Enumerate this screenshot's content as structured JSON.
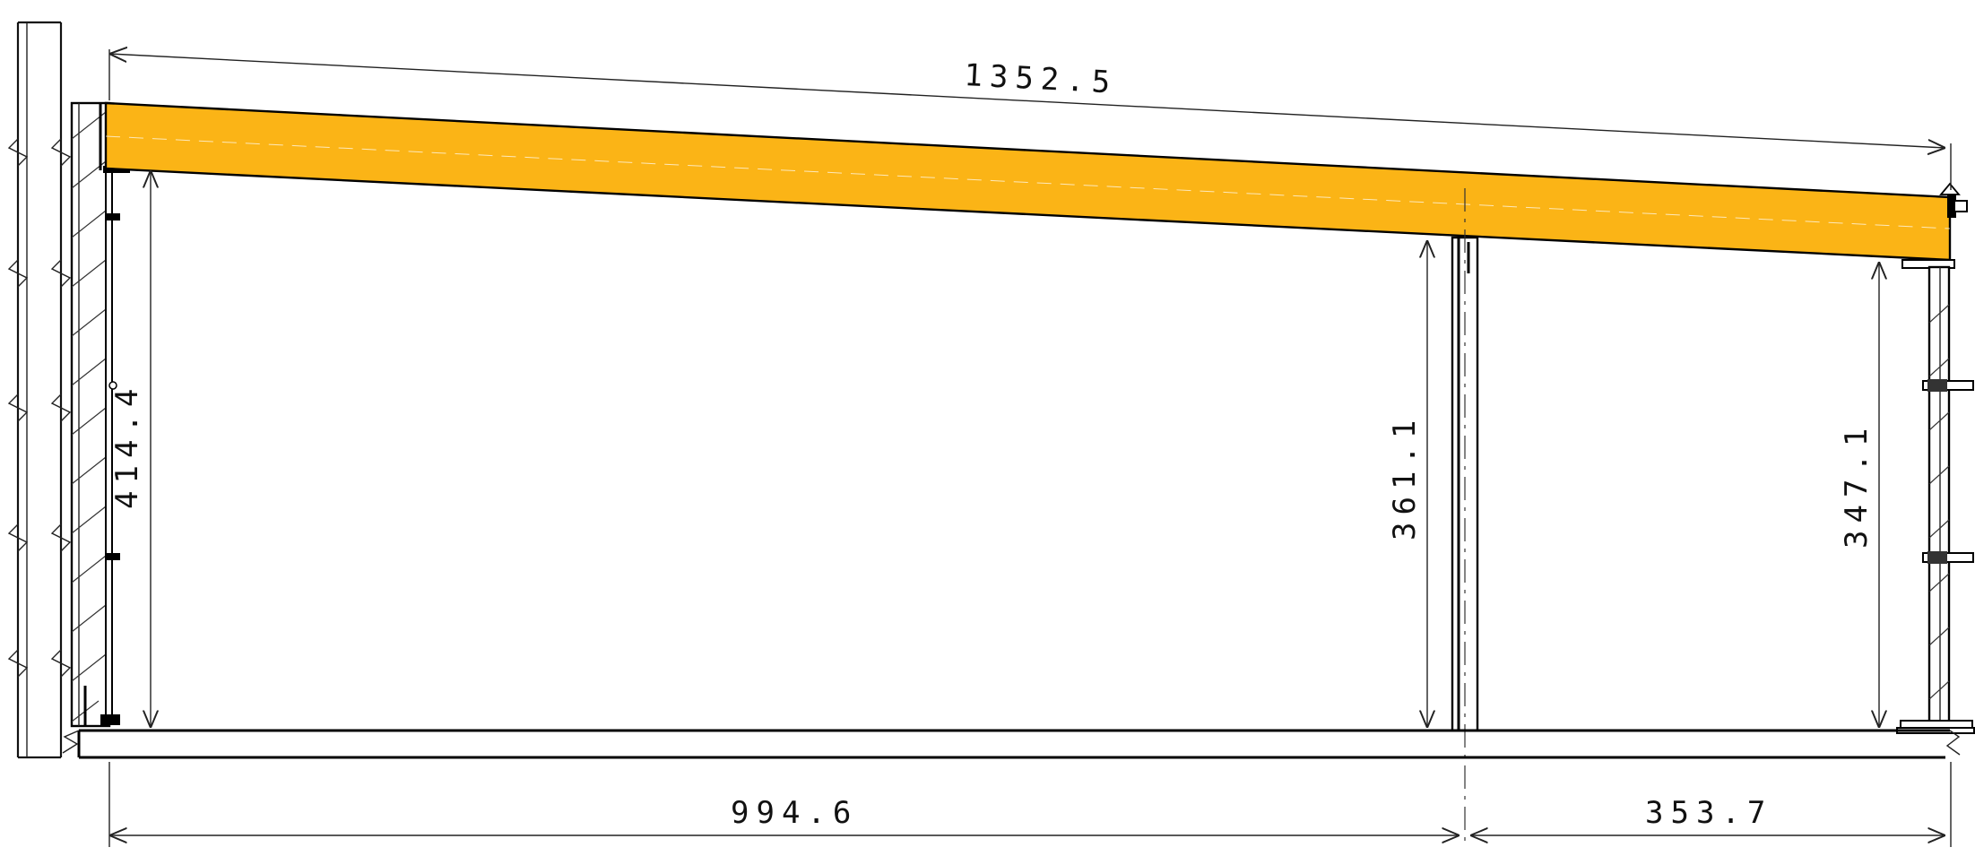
{
  "drawing": {
    "colors": {
      "beam": "#FBB416",
      "line": "#111111",
      "background": "#FFFFFF"
    },
    "dimensions": {
      "beam_length": "1352.5",
      "left_height": "414.4",
      "middle_height": "361.1",
      "right_height": "347.1",
      "left_span": "994.6",
      "right_span": "353.7"
    }
  }
}
